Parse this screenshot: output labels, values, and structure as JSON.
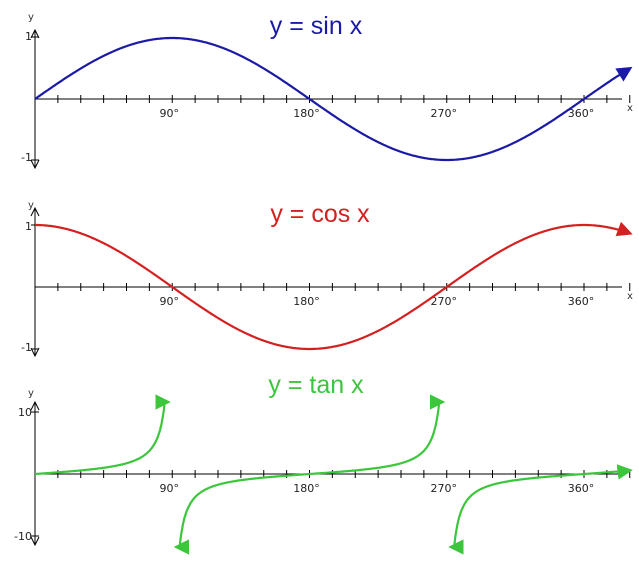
{
  "chart_data": [
    {
      "type": "line",
      "function": "sin",
      "title": "y = sin x",
      "color": "#1a1aa6",
      "xlabel": "x",
      "ylabel": "y",
      "xlim": [
        0,
        400
      ],
      "ylim": [
        -1,
        1
      ],
      "x_tick_step": 15,
      "x_tick_labels": [
        "90°",
        "180°",
        "270°",
        "360°"
      ],
      "y_tick_labels": [
        "1",
        "-1"
      ],
      "series": [
        {
          "x": [
            0,
            30,
            60,
            90,
            120,
            150,
            180,
            210,
            240,
            270,
            300,
            330,
            360,
            390
          ],
          "values": [
            0,
            0.5,
            0.87,
            1,
            0.87,
            0.5,
            0,
            -0.5,
            -0.87,
            -1,
            -0.87,
            -0.5,
            0,
            0.5
          ]
        }
      ]
    },
    {
      "type": "line",
      "function": "cos",
      "title": "y = cos x",
      "color": "#d42020",
      "xlabel": "x",
      "ylabel": "y",
      "xlim": [
        0,
        400
      ],
      "ylim": [
        -1,
        1
      ],
      "x_tick_step": 15,
      "x_tick_labels": [
        "90°",
        "180°",
        "270°",
        "360°"
      ],
      "y_tick_labels": [
        "1",
        "-1"
      ],
      "series": [
        {
          "x": [
            0,
            30,
            60,
            90,
            120,
            150,
            180,
            210,
            240,
            270,
            300,
            330,
            360,
            390
          ],
          "values": [
            1,
            0.87,
            0.5,
            0,
            -0.5,
            -0.87,
            -1,
            -0.87,
            -0.5,
            0,
            0.5,
            0.87,
            1,
            0.87
          ]
        }
      ]
    },
    {
      "type": "line",
      "function": "tan",
      "title": "y = tan x",
      "color": "#3cc63c",
      "xlabel": "",
      "ylabel": "y",
      "xlim": [
        0,
        400
      ],
      "ylim": [
        -10,
        10
      ],
      "x_tick_step": 15,
      "x_tick_labels": [
        "90°",
        "180°",
        "270°",
        "360°"
      ],
      "y_tick_labels": [
        "10",
        "-10"
      ],
      "series": [
        {
          "x": [
            0,
            30,
            60,
            80,
            87
          ],
          "values": [
            0,
            0.58,
            1.73,
            5.67,
            19.1
          ]
        },
        {
          "x": [
            93,
            100,
            120,
            150,
            180,
            210,
            240,
            260,
            267
          ],
          "values": [
            -19.1,
            -5.67,
            -1.73,
            -0.58,
            0,
            0.58,
            1.73,
            5.67,
            19.1
          ]
        },
        {
          "x": [
            273,
            280,
            300,
            330,
            360,
            390
          ],
          "values": [
            -19.1,
            -5.67,
            -1.73,
            -0.58,
            0,
            0.58
          ]
        }
      ]
    }
  ]
}
